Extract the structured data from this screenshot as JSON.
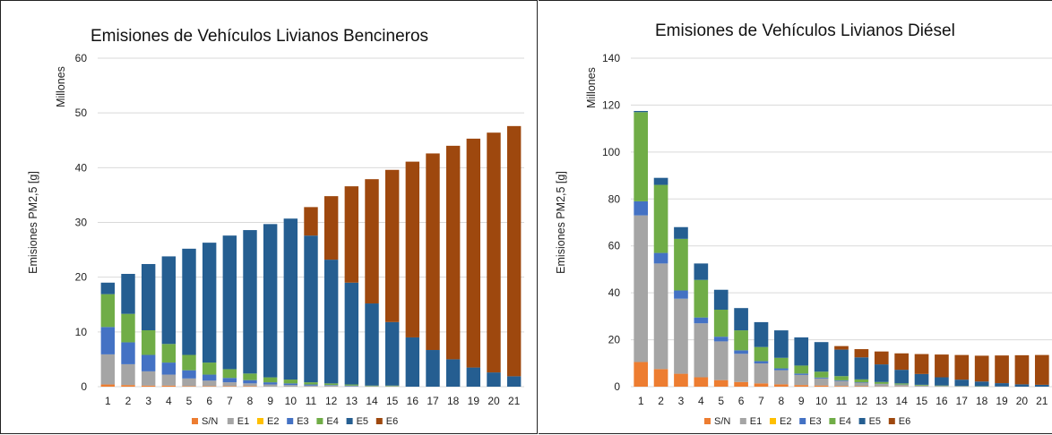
{
  "colors": {
    "S/N": "#ED7D31",
    "E1": "#A5A5A5",
    "E2": "#FFC000",
    "E3": "#4472C4",
    "E4": "#70AD47",
    "E5": "#255E91",
    "E6": "#9E480E",
    "grid": "#D9D9D9"
  },
  "chart_data": [
    {
      "type": "bar",
      "stacked": true,
      "title": "Emisiones de Vehículos Livianos Bencineros",
      "ylabel": "Emisiones PM2,5 [g]",
      "yunit": "Millones",
      "ylim": [
        0,
        60
      ],
      "yticks": [
        0,
        10,
        20,
        30,
        40,
        50,
        60
      ],
      "grid": true,
      "legend_position": "bottom",
      "categories": [
        "1",
        "2",
        "3",
        "4",
        "5",
        "6",
        "7",
        "8",
        "9",
        "10",
        "11",
        "12",
        "13",
        "14",
        "15",
        "16",
        "17",
        "18",
        "19",
        "20",
        "21"
      ],
      "series": [
        {
          "name": "S/N",
          "values": [
            0.4,
            0.3,
            0.2,
            0.2,
            0.1,
            0.1,
            0.1,
            0.1,
            0,
            0,
            0,
            0,
            0,
            0,
            0,
            0,
            0,
            0,
            0,
            0,
            0
          ]
        },
        {
          "name": "E1",
          "values": [
            5.5,
            3.8,
            2.6,
            2.0,
            1.4,
            1.0,
            0.7,
            0.5,
            0.4,
            0.3,
            0.2,
            0.2,
            0.1,
            0.1,
            0.1,
            0,
            0,
            0,
            0,
            0,
            0
          ]
        },
        {
          "name": "E2",
          "values": [
            0,
            0,
            0,
            0,
            0,
            0,
            0,
            0,
            0,
            0,
            0,
            0,
            0,
            0,
            0,
            0,
            0,
            0,
            0,
            0,
            0
          ]
        },
        {
          "name": "E3",
          "values": [
            5.0,
            4.0,
            3.0,
            2.2,
            1.5,
            1.1,
            0.8,
            0.6,
            0.4,
            0.3,
            0.2,
            0.1,
            0.1,
            0,
            0,
            0,
            0,
            0,
            0,
            0,
            0
          ]
        },
        {
          "name": "E4",
          "values": [
            6.0,
            5.2,
            4.5,
            3.4,
            2.8,
            2.2,
            1.6,
            1.2,
            0.9,
            0.7,
            0.4,
            0.3,
            0.2,
            0.1,
            0.1,
            0,
            0,
            0,
            0,
            0,
            0
          ]
        },
        {
          "name": "E5",
          "values": [
            2.1,
            7.3,
            12.1,
            16.0,
            19.4,
            21.9,
            24.4,
            26.2,
            28.0,
            29.4,
            26.8,
            22.6,
            18.6,
            15.0,
            11.6,
            9.0,
            6.7,
            5.0,
            3.5,
            2.6,
            1.9
          ]
        },
        {
          "name": "E6",
          "values": [
            0,
            0,
            0,
            0,
            0,
            0,
            0,
            0,
            0,
            0,
            5.2,
            11.6,
            17.6,
            22.7,
            27.8,
            32.1,
            35.9,
            39.0,
            41.8,
            43.8,
            45.7
          ]
        }
      ]
    },
    {
      "type": "bar",
      "stacked": true,
      "title": "Emisiones de Vehículos Livianos Diésel",
      "ylabel": "Emisiones PM2,5 [g]",
      "yunit": "Millones",
      "ylim": [
        0,
        140
      ],
      "yticks": [
        0,
        20,
        40,
        60,
        80,
        100,
        120,
        140
      ],
      "grid": true,
      "legend_position": "bottom",
      "categories": [
        "1",
        "2",
        "3",
        "4",
        "5",
        "6",
        "7",
        "8",
        "9",
        "10",
        "11",
        "12",
        "13",
        "14",
        "15",
        "16",
        "17",
        "18",
        "19",
        "20",
        "21"
      ],
      "series": [
        {
          "name": "S/N",
          "values": [
            10.5,
            7.5,
            5.5,
            4.0,
            2.8,
            2.0,
            1.4,
            1.0,
            0.7,
            0.5,
            0.3,
            0.2,
            0.1,
            0.1,
            0,
            0,
            0,
            0,
            0,
            0,
            0
          ]
        },
        {
          "name": "E1",
          "values": [
            62.5,
            45.0,
            32.0,
            23.0,
            16.5,
            12.0,
            8.5,
            6.0,
            4.3,
            3.0,
            2.1,
            1.5,
            1.0,
            0.7,
            0.5,
            0.3,
            0.2,
            0.1,
            0.1,
            0,
            0
          ]
        },
        {
          "name": "E2",
          "values": [
            0,
            0,
            0,
            0,
            0,
            0,
            0,
            0,
            0,
            0,
            0,
            0,
            0,
            0,
            0,
            0,
            0,
            0,
            0,
            0,
            0
          ]
        },
        {
          "name": "E3",
          "values": [
            6.0,
            4.5,
            3.5,
            2.5,
            2.0,
            1.5,
            1.0,
            0.8,
            0.6,
            0.4,
            0.3,
            0.2,
            0.1,
            0.1,
            0,
            0,
            0,
            0,
            0,
            0,
            0
          ]
        },
        {
          "name": "E4",
          "values": [
            38.0,
            29.0,
            22.0,
            16.0,
            11.5,
            8.5,
            6.0,
            4.5,
            3.4,
            2.5,
            1.8,
            1.2,
            0.8,
            0.5,
            0.3,
            0.2,
            0.1,
            0.1,
            0,
            0,
            0
          ]
        },
        {
          "name": "E5",
          "values": [
            0.5,
            3.0,
            5.0,
            7.0,
            8.5,
            9.5,
            10.6,
            11.7,
            12.0,
            12.6,
            11.3,
            9.4,
            7.5,
            5.8,
            4.6,
            3.5,
            2.7,
            2.0,
            1.4,
            1.0,
            0.8
          ]
        },
        {
          "name": "E6",
          "values": [
            0,
            0,
            0,
            0,
            0,
            0,
            0,
            0,
            0,
            0,
            1.5,
            3.5,
            5.5,
            7.0,
            8.5,
            9.7,
            10.5,
            11.0,
            11.8,
            12.4,
            12.7
          ]
        }
      ]
    }
  ]
}
